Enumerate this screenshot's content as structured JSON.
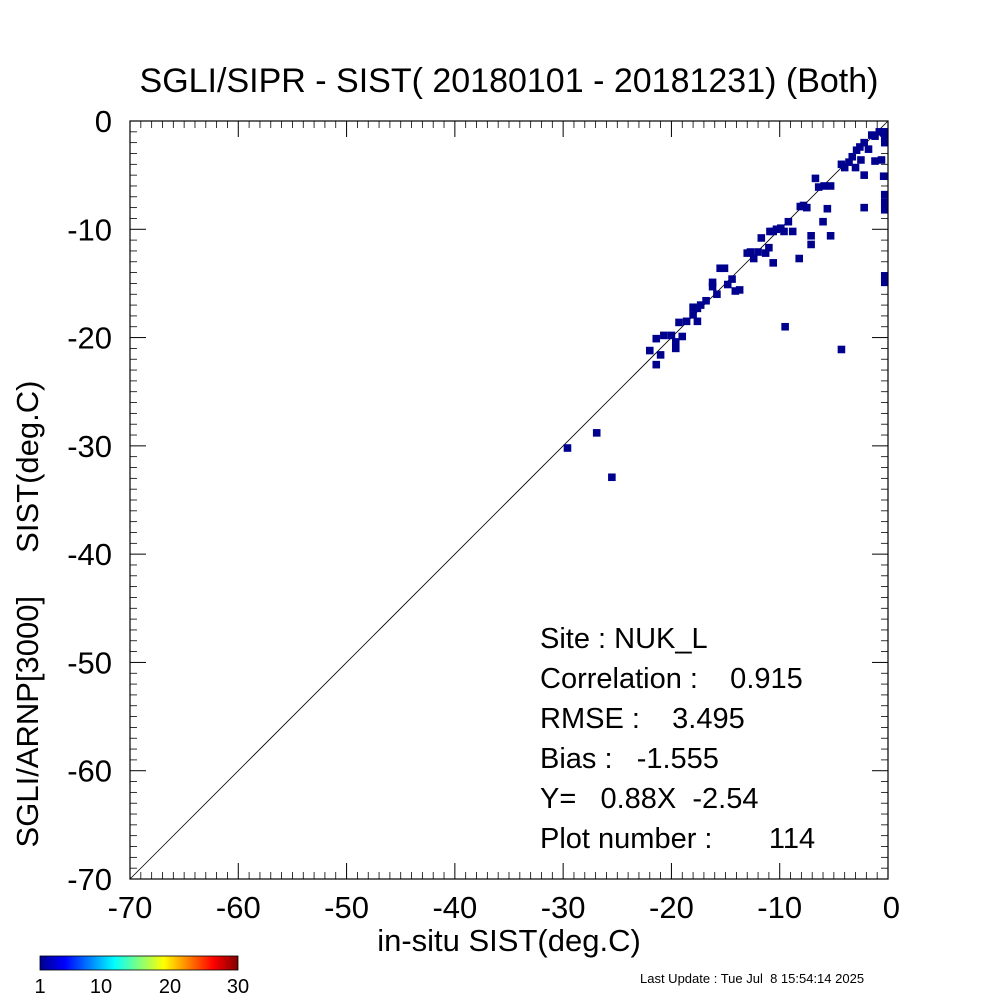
{
  "chart_data": {
    "type": "heatmap",
    "title": "SGLI/SIPR - SIST( 20180101 - 20181231) (Both)",
    "xlabel": "in-situ SIST(deg.C)",
    "ylabel": "SGLI/ARNP[3000]     SIST(deg.C)",
    "xlim": [
      -70,
      0
    ],
    "ylim": [
      -70,
      0
    ],
    "x_ticks": [
      "-70",
      "-60",
      "-50",
      "-40",
      "-30",
      "-20",
      "-10",
      "0"
    ],
    "y_ticks": [
      "-70",
      "-60",
      "-50",
      "-40",
      "-30",
      "-20",
      "-10",
      "0"
    ],
    "bin_size": 0.7,
    "one_to_one_line": true,
    "colorbar": {
      "min": 1,
      "max": 30,
      "labels": [
        "1",
        "10",
        "20",
        "30"
      ]
    },
    "stats": [
      "Site : NUK_L",
      "Correlation :    0.915",
      "RMSE :    3.495",
      "Bias :   -1.555",
      "Y=   0.88X  -2.54",
      "Plot number :       114"
    ],
    "points": [
      [
        -29.6,
        -30.2
      ],
      [
        -26.9,
        -28.8
      ],
      [
        -25.5,
        -32.9
      ],
      [
        -22.0,
        -21.2
      ],
      [
        -21.4,
        -22.5
      ],
      [
        -21.4,
        -20.1
      ],
      [
        -21.0,
        -21.6
      ],
      [
        -20.7,
        -19.8
      ],
      [
        -20.0,
        -19.8
      ],
      [
        -19.6,
        -21.0
      ],
      [
        -19.6,
        -20.4
      ],
      [
        -19.3,
        -18.6
      ],
      [
        -19.0,
        -19.9
      ],
      [
        -18.6,
        -18.5
      ],
      [
        -18.0,
        -17.2
      ],
      [
        -18.0,
        -17.9
      ],
      [
        -17.6,
        -17.3
      ],
      [
        -17.6,
        -18.5
      ],
      [
        -17.3,
        -17.0
      ],
      [
        -16.8,
        -16.6
      ],
      [
        -16.2,
        -15.3
      ],
      [
        -16.2,
        -14.9
      ],
      [
        -15.8,
        -16.0
      ],
      [
        -15.5,
        -13.6
      ],
      [
        -15.1,
        -13.6
      ],
      [
        -14.8,
        -15.1
      ],
      [
        -14.4,
        -14.6
      ],
      [
        -14.1,
        -15.7
      ],
      [
        -13.7,
        -15.6
      ],
      [
        -13.0,
        -12.2
      ],
      [
        -12.7,
        -12.1
      ],
      [
        -12.4,
        -12.7
      ],
      [
        -12.0,
        -12.1
      ],
      [
        -11.7,
        -10.8
      ],
      [
        -11.3,
        -12.2
      ],
      [
        -11.0,
        -11.7
      ],
      [
        -10.9,
        -10.2
      ],
      [
        -10.6,
        -13.1
      ],
      [
        -10.6,
        -10.2
      ],
      [
        -10.3,
        -10.0
      ],
      [
        -9.9,
        -9.9
      ],
      [
        -9.6,
        -10.2
      ],
      [
        -9.2,
        -9.3
      ],
      [
        -9.5,
        -19.0
      ],
      [
        -8.8,
        -10.2
      ],
      [
        -8.2,
        -12.7
      ],
      [
        -8.1,
        -7.9
      ],
      [
        -7.8,
        -7.8
      ],
      [
        -7.5,
        -8.0
      ],
      [
        -7.1,
        -10.6
      ],
      [
        -7.1,
        -11.4
      ],
      [
        -6.7,
        -5.3
      ],
      [
        -6.4,
        -6.1
      ],
      [
        -6.0,
        -9.3
      ],
      [
        -5.9,
        -6.0
      ],
      [
        -5.6,
        -8.1
      ],
      [
        -5.3,
        -10.6
      ],
      [
        -5.3,
        -6.0
      ],
      [
        -4.3,
        -21.1
      ],
      [
        -4.3,
        -4.0
      ],
      [
        -4.0,
        -4.3
      ],
      [
        -3.6,
        -3.8
      ],
      [
        -3.3,
        -3.3
      ],
      [
        -3.0,
        -4.3
      ],
      [
        -2.9,
        -2.7
      ],
      [
        -2.6,
        -2.4
      ],
      [
        -2.5,
        -3.6
      ],
      [
        -2.2,
        -8.0
      ],
      [
        -2.2,
        -5.0
      ],
      [
        -2.2,
        -2.0
      ],
      [
        -1.8,
        -2.6
      ],
      [
        -1.5,
        -1.3
      ],
      [
        -1.2,
        -1.4
      ],
      [
        -1.2,
        -3.7
      ],
      [
        -0.8,
        -1.0
      ],
      [
        -0.6,
        -3.6
      ],
      [
        -0.4,
        -1.1
      ],
      [
        -0.4,
        -5.1
      ],
      [
        -0.3,
        -14.3
      ],
      [
        -0.3,
        -14.9
      ],
      [
        -0.3,
        -6.8
      ],
      [
        -0.3,
        -7.5
      ],
      [
        -0.3,
        -8.2
      ],
      [
        -0.3,
        -2.0
      ],
      [
        -0.3,
        -1.5
      ],
      [
        -0.3,
        -1.0
      ]
    ]
  },
  "footer": {
    "last_update": "Last Update : Tue Jul  8 15:54:14 2025"
  }
}
